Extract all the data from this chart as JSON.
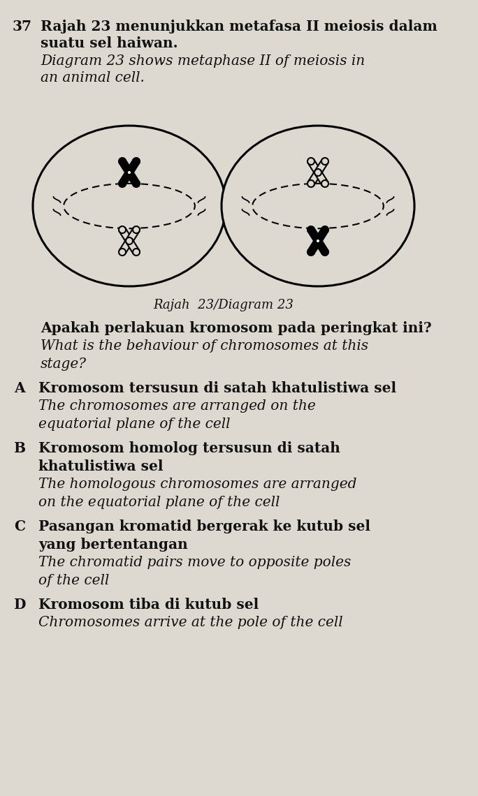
{
  "question_number": "37",
  "bg_color": "#ddd9d0",
  "text_color": "#111111",
  "line1_bold": "Rajah 23 menunjukkan metafasa II meiosis dalam",
  "line2_bold": "suatu sel haiwan.",
  "line3_italic": "Diagram 23 shows metaphase II of meiosis in",
  "line4_italic": "an animal cell.",
  "diagram_label": "Rajah  23/Diagram 23",
  "question_malay": "Apakah perlakuan kromosom pada peringkat ini?",
  "option_A_malay": "Kromosom tersusun di satah khatulistiwa sel",
  "option_A_eng1": "The chromosomes are arranged on the",
  "option_A_eng2": "equatorial plane of the cell",
  "option_B_malay1": "Kromosom homolog tersusun di satah",
  "option_B_malay2": "khatulistiwa sel",
  "option_B_eng1": "The homologous chromosomes are arranged",
  "option_B_eng2": "on the equatorial plane of the cell",
  "option_C_malay1": "Pasangan kromatid bergerak ke kutub sel",
  "option_C_malay2": "yang bertentangan",
  "option_C_eng1": "The chromatid pairs move to opposite poles",
  "option_C_eng2": "of the cell",
  "option_D_malay": "Kromosom tiba di kutub sel",
  "option_D_eng": "Chromosomes arrive at the pole of the cell"
}
